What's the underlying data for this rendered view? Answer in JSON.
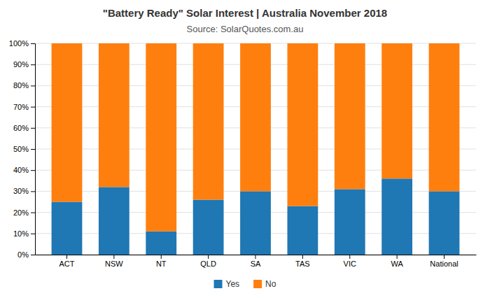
{
  "chart_data": {
    "type": "bar",
    "stacked": true,
    "title": "\"Battery Ready\" Solar Interest  |  Australia November 2018",
    "subtitle": "Source: SolarQuotes.com.au",
    "categories": [
      "ACT",
      "NSW",
      "NT",
      "QLD",
      "SA",
      "TAS",
      "VIC",
      "WA",
      "National"
    ],
    "series": [
      {
        "name": "Yes",
        "values": [
          25,
          32,
          11,
          26,
          30,
          23,
          31,
          36,
          30
        ]
      },
      {
        "name": "No",
        "values": [
          75,
          68,
          89,
          74,
          70,
          77,
          69,
          64,
          70
        ]
      }
    ],
    "ylim": [
      0,
      100
    ],
    "yticks": [
      {
        "value": 0,
        "label": "0%"
      },
      {
        "value": 10,
        "label": "10%"
      },
      {
        "value": 20,
        "label": "20%"
      },
      {
        "value": 30,
        "label": "30%"
      },
      {
        "value": 40,
        "label": "40%"
      },
      {
        "value": 50,
        "label": "50%"
      },
      {
        "value": 60,
        "label": "60%"
      },
      {
        "value": 70,
        "label": "70%"
      },
      {
        "value": 80,
        "label": "80%"
      },
      {
        "value": 90,
        "label": "90%"
      },
      {
        "value": 100,
        "label": "100%"
      }
    ],
    "grid": true,
    "legend": "bottom"
  }
}
